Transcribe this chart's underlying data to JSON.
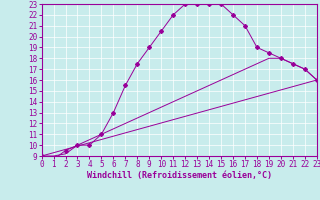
{
  "xlabel": "Windchill (Refroidissement éolien,°C)",
  "ylim": [
    9,
    23
  ],
  "xlim": [
    0,
    23
  ],
  "yticks": [
    9,
    10,
    11,
    12,
    13,
    14,
    15,
    16,
    17,
    18,
    19,
    20,
    21,
    22,
    23
  ],
  "xticks": [
    0,
    1,
    2,
    3,
    4,
    5,
    6,
    7,
    8,
    9,
    10,
    11,
    12,
    13,
    14,
    15,
    16,
    17,
    18,
    19,
    20,
    21,
    22,
    23
  ],
  "bg_color": "#c8ecec",
  "line_color": "#990099",
  "grid_color": "#aadddd",
  "line1_x": [
    0,
    1,
    2,
    3,
    4,
    5,
    6,
    7,
    8,
    9,
    10,
    11,
    12,
    13,
    14,
    15,
    16,
    17,
    18,
    19,
    20,
    21,
    22,
    23
  ],
  "line1_y": [
    9,
    8.7,
    9.5,
    10.0,
    10.0,
    11.0,
    13.0,
    15.5,
    17.5,
    19.0,
    20.5,
    22.0,
    23.0,
    23.0,
    23.0,
    23.0,
    22.0,
    21.0,
    19.0,
    18.5,
    18.0,
    17.5,
    17.0,
    16.0
  ],
  "line2_x": [
    0,
    1,
    2,
    3,
    4,
    5,
    6,
    7,
    8,
    9,
    10,
    11,
    12,
    13,
    14,
    15,
    16,
    17,
    18,
    19,
    20,
    21,
    22,
    23
  ],
  "line2_y": [
    9,
    9,
    9.2,
    10.0,
    10.5,
    11.0,
    11.5,
    12.0,
    12.5,
    13.0,
    13.5,
    14.0,
    14.5,
    15.0,
    15.5,
    16.0,
    16.5,
    17.0,
    17.5,
    18.0,
    18.0,
    17.5,
    17.0,
    16.0
  ],
  "line3_x": [
    0,
    23
  ],
  "line3_y": [
    9,
    16.0
  ],
  "tick_fontsize": 5.5,
  "xlabel_fontsize": 6,
  "lw": 0.7,
  "ms": 2.0
}
